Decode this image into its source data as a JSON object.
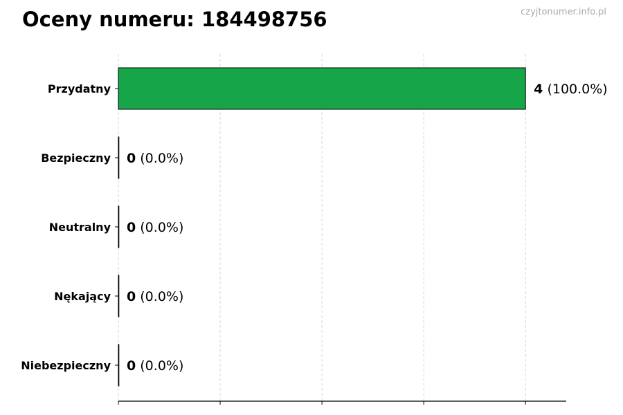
{
  "title": "Oceny numeru: 184498756",
  "watermark": "czyjtonumer.info.pl",
  "chart_data": {
    "type": "bar",
    "orientation": "horizontal",
    "title": "Oceny numeru: 184498756",
    "categories": [
      "Przydatny",
      "Bezpieczny",
      "Neutralny",
      "Nękający",
      "Niebezpieczny"
    ],
    "values": [
      4,
      0,
      0,
      0,
      0
    ],
    "data_labels": [
      {
        "count": "4",
        "percent": "(100.0%)"
      },
      {
        "count": "0",
        "percent": "(0.0%)"
      },
      {
        "count": "0",
        "percent": "(0.0%)"
      },
      {
        "count": "0",
        "percent": "(0.0%)"
      },
      {
        "count": "0",
        "percent": "(0.0%)"
      }
    ],
    "colors": [
      "#17a54a",
      "#17a54a",
      "#17a54a",
      "#17a54a",
      "#17a54a"
    ],
    "xlim": [
      0,
      4.4
    ],
    "xticks": [
      0,
      1,
      2,
      3,
      4
    ],
    "xtick_labels_shown": false,
    "grid": "vertical dashed",
    "xlabel": "",
    "ylabel": ""
  }
}
